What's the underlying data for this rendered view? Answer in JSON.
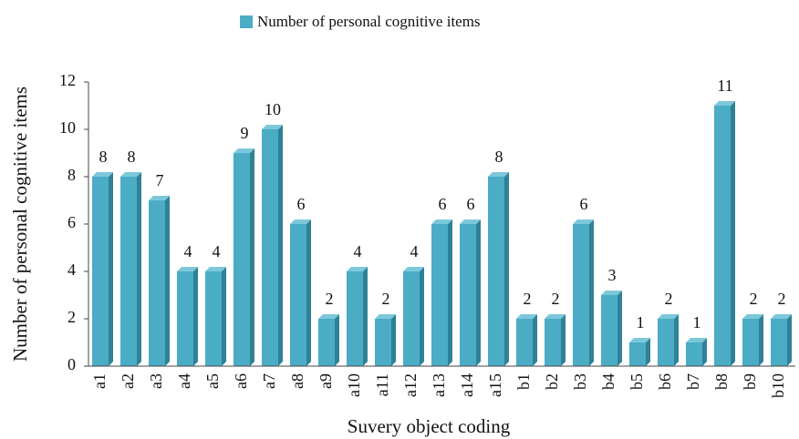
{
  "chart_data": {
    "type": "bar",
    "legend": "Number of personal cognitive items",
    "y_label": "Number of personal cognitive items",
    "x_label": "Suvery object coding",
    "categories": [
      "a1",
      "a2",
      "a3",
      "a4",
      "a5",
      "a6",
      "a7",
      "a8",
      "a9",
      "a10",
      "a11",
      "a12",
      "a13",
      "a14",
      "a15",
      "b1",
      "b2",
      "b3",
      "b4",
      "b5",
      "b6",
      "b7",
      "b8",
      "b9",
      "b10"
    ],
    "values": [
      8,
      8,
      7,
      4,
      4,
      9,
      10,
      6,
      2,
      4,
      2,
      4,
      6,
      6,
      8,
      2,
      2,
      6,
      3,
      1,
      2,
      1,
      11,
      2,
      2
    ],
    "color": "#4bacc6",
    "ylim": [
      0,
      12
    ],
    "yticks": [
      0,
      2,
      4,
      6,
      8,
      10,
      12
    ],
    "grid": false,
    "legend_position": "top"
  }
}
